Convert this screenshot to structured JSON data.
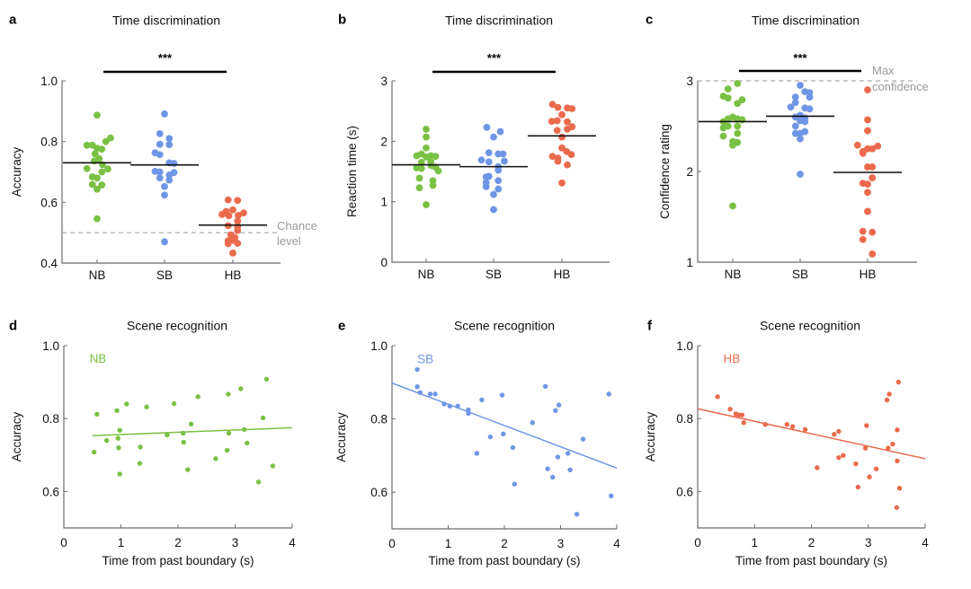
{
  "colors": {
    "NB": "#7ac143",
    "SB": "#6f96e6",
    "HB": "#ea6a4c"
  },
  "chart_data": [
    {
      "id": "a",
      "type": "scatter",
      "subtype": "swarm",
      "panel_letter": "a",
      "title": "Time discrimination",
      "xlabel": "",
      "ylabel": "Accuracy",
      "categories": [
        "NB",
        "SB",
        "HB"
      ],
      "ylim": [
        0.4,
        1.0
      ],
      "yticks": [
        0.4,
        0.6,
        0.8,
        1.0
      ],
      "ytick_labels": [
        "0.4",
        "0.6",
        "0.8",
        "1.0"
      ],
      "significance": {
        "label": "***",
        "from": "NB",
        "to": "HB"
      },
      "reference_line": {
        "value": 0.5,
        "label": [
          "Chance",
          "level"
        ]
      },
      "series": [
        {
          "name": "NB",
          "mean": 0.73,
          "values": [
            0.887,
            0.812,
            0.8,
            0.788,
            0.788,
            0.778,
            0.775,
            0.76,
            0.744,
            0.736,
            0.724,
            0.711,
            0.71,
            0.7,
            0.684,
            0.68,
            0.659,
            0.657,
            0.643,
            0.546
          ],
          "offsets": [
            0,
            2,
            1.3,
            -1.5,
            -0.7,
            0,
            0.7,
            -0.3,
            0.3,
            -0.4,
            0.8,
            -1.5,
            1.6,
            0.7,
            -0.7,
            0,
            -0.7,
            0.7,
            0,
            0
          ]
        },
        {
          "name": "SB",
          "mean": 0.723,
          "values": [
            0.891,
            0.826,
            0.81,
            0.791,
            0.79,
            0.763,
            0.757,
            0.73,
            0.728,
            0.702,
            0.7,
            0.698,
            0.69,
            0.68,
            0.673,
            0.652,
            0.624,
            0.47
          ],
          "offsets": [
            0,
            -0.7,
            0.7,
            -0.7,
            0.7,
            -1.4,
            -0.7,
            0.7,
            1.4,
            -1.4,
            -0.7,
            1.4,
            0.7,
            -0.7,
            0.7,
            0,
            0,
            0
          ]
        },
        {
          "name": "HB",
          "mean": 0.525,
          "values": [
            0.608,
            0.606,
            0.575,
            0.57,
            0.565,
            0.56,
            0.557,
            0.556,
            0.538,
            0.523,
            0.52,
            0.507,
            0.493,
            0.484,
            0.475,
            0.473,
            0.465,
            0.464,
            0.433
          ],
          "offsets": [
            -0.7,
            0.7,
            0,
            -1.0,
            1.6,
            -1.6,
            0.8,
            -0.6,
            0.7,
            -0.7,
            0.7,
            0.7,
            -0.3,
            0.3,
            0,
            -0.7,
            0.7,
            -0.7,
            0
          ]
        }
      ]
    },
    {
      "id": "b",
      "type": "scatter",
      "subtype": "swarm",
      "panel_letter": "b",
      "title": "Time discrimination",
      "xlabel": "",
      "ylabel": "Reaction time (s)",
      "categories": [
        "NB",
        "SB",
        "HB"
      ],
      "ylim": [
        0,
        3
      ],
      "yticks": [
        0,
        1,
        2,
        3
      ],
      "ytick_labels": [
        "0",
        "1",
        "2",
        "3"
      ],
      "significance": {
        "label": "***",
        "from": "NB",
        "to": "HB"
      },
      "series": [
        {
          "name": "NB",
          "mean": 1.61,
          "values": [
            2.2,
            2.07,
            1.89,
            1.79,
            1.76,
            1.76,
            1.75,
            1.74,
            1.66,
            1.65,
            1.6,
            1.57,
            1.56,
            1.55,
            1.51,
            1.39,
            1.35,
            1.27,
            1.23,
            0.95
          ],
          "offsets": [
            0,
            0,
            0,
            -0.7,
            -1.4,
            0.7,
            1.4,
            0,
            0.7,
            -0.7,
            0.7,
            1.4,
            -1.4,
            -0.7,
            1.8,
            -1.0,
            1.0,
            1.0,
            -1.0,
            0
          ]
        },
        {
          "name": "SB",
          "mean": 1.58,
          "values": [
            2.23,
            2.16,
            2.07,
            1.81,
            1.79,
            1.79,
            1.69,
            1.67,
            1.66,
            1.58,
            1.52,
            1.42,
            1.41,
            1.35,
            1.32,
            1.25,
            1.21,
            1.12,
            0.87
          ],
          "offsets": [
            -1.0,
            1.0,
            0,
            -0.7,
            0.7,
            1.4,
            -1.8,
            1.6,
            -0.7,
            0.7,
            0.7,
            -0.7,
            -1.1,
            0.7,
            -1.1,
            -1.1,
            0.7,
            0,
            0
          ]
        },
        {
          "name": "HB",
          "mean": 2.09,
          "values": [
            2.61,
            2.56,
            2.55,
            2.54,
            2.44,
            2.34,
            2.33,
            2.32,
            2.24,
            2.2,
            2.18,
            2.07,
            1.89,
            1.83,
            1.78,
            1.75,
            1.72,
            1.67,
            1.61,
            1.31
          ],
          "offsets": [
            -1.4,
            -0.6,
            0.8,
            1.5,
            0,
            -0.7,
            -1.5,
            0.8,
            1.5,
            0.8,
            -0.7,
            0,
            0,
            0.7,
            1.4,
            -1.4,
            -0.6,
            -0.6,
            0.8,
            0
          ]
        }
      ]
    },
    {
      "id": "c",
      "type": "scatter",
      "subtype": "swarm",
      "panel_letter": "c",
      "title": "Time discrimination",
      "xlabel": "",
      "ylabel": "Confidence rating",
      "categories": [
        "NB",
        "SB",
        "HB"
      ],
      "ylim": [
        1,
        3
      ],
      "yticks": [
        1,
        2,
        3
      ],
      "ytick_labels": [
        "1",
        "2",
        "3"
      ],
      "significance": {
        "label": "***",
        "from": "NB",
        "to": "HB"
      },
      "reference_line": {
        "value": 3,
        "label": [
          "Max",
          "confidence"
        ]
      },
      "series": [
        {
          "name": "NB",
          "mean": 2.55,
          "values": [
            2.97,
            2.91,
            2.83,
            2.81,
            2.79,
            2.75,
            2.6,
            2.58,
            2.58,
            2.57,
            2.55,
            2.5,
            2.5,
            2.48,
            2.42,
            2.39,
            2.33,
            2.32,
            2.29,
            1.62
          ],
          "offsets": [
            0.7,
            -0.7,
            -1.4,
            -0.7,
            1.4,
            0.7,
            0,
            -0.7,
            0.7,
            1.4,
            -1.4,
            0.7,
            -0.7,
            -1.4,
            0.7,
            -1.4,
            0,
            0.7,
            0,
            0
          ]
        },
        {
          "name": "SB",
          "mean": 2.61,
          "values": [
            2.95,
            2.88,
            2.87,
            2.82,
            2.82,
            2.76,
            2.71,
            2.7,
            2.69,
            2.62,
            2.6,
            2.59,
            2.56,
            2.55,
            2.5,
            2.44,
            2.42,
            2.42,
            2.36,
            1.97
          ],
          "offsets": [
            0,
            0.7,
            1.4,
            -0.7,
            1.4,
            -0.7,
            -1.4,
            0.7,
            1.4,
            0,
            -0.7,
            0.7,
            0,
            0.7,
            -0.7,
            0.7,
            -0.7,
            0,
            0,
            0
          ]
        },
        {
          "name": "HB",
          "mean": 1.99,
          "values": [
            2.9,
            2.57,
            2.45,
            2.29,
            2.28,
            2.25,
            2.25,
            2.22,
            2.2,
            2.05,
            2.05,
            1.93,
            1.87,
            1.86,
            1.77,
            1.56,
            1.34,
            1.33,
            1.25,
            1.09
          ],
          "offsets": [
            0,
            0,
            0,
            -1.5,
            1.5,
            0,
            0.7,
            -0.7,
            -0.7,
            0,
            0.7,
            0.7,
            -0.7,
            0,
            0,
            0,
            -0.7,
            0.7,
            -0.7,
            0.7
          ]
        }
      ]
    },
    {
      "id": "d",
      "type": "scatter",
      "panel_letter": "d",
      "title": "Scene recognition",
      "xlabel": "Time from past boundary (s)",
      "ylabel": "Accuracy",
      "group_label": "NB",
      "xlim": [
        0,
        4
      ],
      "ylim": [
        0.5,
        1.0
      ],
      "xticks": [
        0,
        1,
        2,
        3,
        4
      ],
      "xtick_labels": [
        "0",
        "1",
        "2",
        "3",
        "4"
      ],
      "yticks": [
        0.6,
        0.8,
        1.0
      ],
      "ytick_labels": [
        "0.6",
        "0.8",
        "1.0"
      ],
      "fit_line": {
        "x": [
          0.5,
          4.0
        ],
        "y": [
          0.753,
          0.775
        ]
      },
      "series": [
        {
          "name": "NB",
          "x": [
            0.53,
            0.58,
            0.75,
            0.93,
            0.95,
            0.96,
            0.98,
            0.98,
            1.1,
            1.33,
            1.34,
            1.45,
            1.81,
            1.93,
            2.09,
            2.1,
            2.17,
            2.23,
            2.35,
            2.66,
            2.86,
            2.88,
            2.89,
            3.1,
            3.16,
            3.21,
            3.41,
            3.49,
            3.55,
            3.66
          ],
          "y": [
            0.708,
            0.812,
            0.74,
            0.822,
            0.746,
            0.72,
            0.648,
            0.768,
            0.84,
            0.677,
            0.722,
            0.832,
            0.755,
            0.841,
            0.76,
            0.735,
            0.66,
            0.785,
            0.86,
            0.69,
            0.713,
            0.867,
            0.76,
            0.882,
            0.77,
            0.733,
            0.626,
            0.802,
            0.908,
            0.67
          ]
        }
      ]
    },
    {
      "id": "e",
      "type": "scatter",
      "panel_letter": "e",
      "title": "Scene recognition",
      "xlabel": "Time from past boundary (s)",
      "ylabel": "Accuracy",
      "group_label": "SB",
      "xlim": [
        0,
        4
      ],
      "ylim": [
        0.5,
        1.0
      ],
      "xticks": [
        0,
        1,
        2,
        3,
        4
      ],
      "xtick_labels": [
        "0",
        "1",
        "2",
        "3",
        "4"
      ],
      "yticks": [
        0.6,
        0.8,
        1.0
      ],
      "ytick_labels": [
        "0.6",
        "0.8",
        "1.0"
      ],
      "fit_line": {
        "x": [
          0,
          4.0
        ],
        "y": [
          0.898,
          0.666
        ]
      },
      "series": [
        {
          "name": "SB",
          "x": [
            0.45,
            0.45,
            0.5,
            0.68,
            0.77,
            0.93,
            1.03,
            1.17,
            1.36,
            1.36,
            1.51,
            1.6,
            1.75,
            1.96,
            1.98,
            2.15,
            2.18,
            2.5,
            2.73,
            2.77,
            2.86,
            2.91,
            2.95,
            2.97,
            3.13,
            3.17,
            3.29,
            3.4,
            3.86,
            3.9
          ],
          "y": [
            0.935,
            0.888,
            0.872,
            0.868,
            0.868,
            0.841,
            0.835,
            0.835,
            0.825,
            0.815,
            0.706,
            0.852,
            0.751,
            0.865,
            0.759,
            0.722,
            0.622,
            0.79,
            0.889,
            0.664,
            0.641,
            0.823,
            0.696,
            0.838,
            0.706,
            0.661,
            0.54,
            0.745,
            0.868,
            0.59
          ]
        }
      ]
    },
    {
      "id": "f",
      "type": "scatter",
      "panel_letter": "f",
      "title": "Scene recognition",
      "xlabel": "Time from past boundary (s)",
      "ylabel": "Accuracy",
      "group_label": "HB",
      "xlim": [
        0,
        4
      ],
      "ylim": [
        0.5,
        1.0
      ],
      "xticks": [
        0,
        1,
        2,
        3,
        4
      ],
      "xtick_labels": [
        "0",
        "1",
        "2",
        "3",
        "4"
      ],
      "yticks": [
        0.6,
        0.8,
        1.0
      ],
      "ytick_labels": [
        "0.6",
        "0.8",
        "1.0"
      ],
      "fit_line": {
        "x": [
          0,
          4.0
        ],
        "y": [
          0.827,
          0.69
        ]
      },
      "series": [
        {
          "name": "HB",
          "x": [
            0.35,
            0.57,
            0.67,
            0.72,
            0.78,
            0.81,
            1.19,
            1.57,
            1.67,
            1.89,
            2.1,
            2.4,
            2.48,
            2.48,
            2.56,
            2.78,
            2.82,
            2.95,
            2.97,
            3.02,
            3.14,
            3.33,
            3.35,
            3.37,
            3.43,
            3.5,
            3.51,
            3.51,
            3.53,
            3.55
          ],
          "y": [
            0.86,
            0.826,
            0.813,
            0.81,
            0.81,
            0.789,
            0.784,
            0.784,
            0.778,
            0.77,
            0.665,
            0.757,
            0.693,
            0.765,
            0.699,
            0.676,
            0.612,
            0.719,
            0.781,
            0.64,
            0.662,
            0.851,
            0.719,
            0.867,
            0.73,
            0.556,
            0.684,
            0.769,
            0.9,
            0.609
          ]
        }
      ]
    }
  ]
}
